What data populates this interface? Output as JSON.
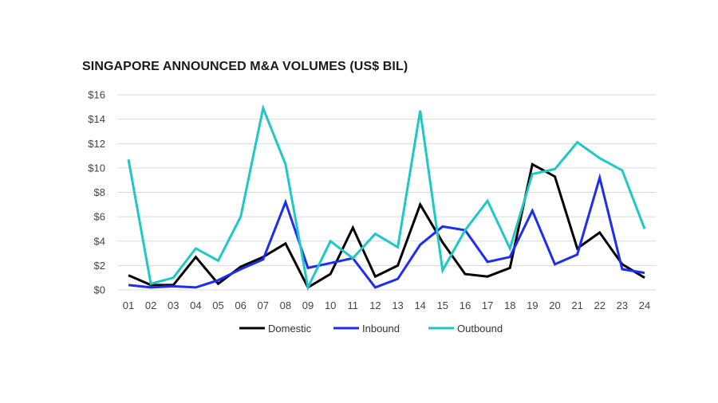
{
  "chart_data": {
    "type": "line",
    "title": "SINGAPORE ANNOUNCED M&A VOLUMES (US$ BIL)",
    "xlabel": "",
    "ylabel": "",
    "ylim": [
      0,
      16
    ],
    "y_ticks": [
      "$0",
      "$2",
      "$4",
      "$6",
      "$8",
      "$10",
      "$12",
      "$14",
      "$16"
    ],
    "y_tick_values": [
      0,
      2,
      4,
      6,
      8,
      10,
      12,
      14,
      16
    ],
    "categories": [
      "01",
      "02",
      "03",
      "04",
      "05",
      "06",
      "07",
      "08",
      "09",
      "10",
      "11",
      "12",
      "13",
      "14",
      "15",
      "16",
      "17",
      "18",
      "19",
      "20",
      "21",
      "22",
      "23",
      "24"
    ],
    "grid": true,
    "legend_position": "bottom",
    "series": [
      {
        "name": "Domestic",
        "color": "#000000",
        "values": [
          1.2,
          0.4,
          0.4,
          2.7,
          0.5,
          1.9,
          2.7,
          3.8,
          0.2,
          1.3,
          5.1,
          1.1,
          2.0,
          7.0,
          3.9,
          1.3,
          1.1,
          1.8,
          10.3,
          9.3,
          3.4,
          4.7,
          2.1,
          1.0
        ]
      },
      {
        "name": "Inbound",
        "color": "#1f2df0",
        "values": [
          0.4,
          0.2,
          0.3,
          0.2,
          0.8,
          1.7,
          2.5,
          7.2,
          1.8,
          2.2,
          2.6,
          0.2,
          0.9,
          3.7,
          5.2,
          4.9,
          2.3,
          2.7,
          6.5,
          2.1,
          2.9,
          9.2,
          1.7,
          1.4
        ]
      },
      {
        "name": "Outbound",
        "color": "#1ec8c8",
        "values": [
          10.7,
          0.5,
          1.0,
          3.4,
          2.4,
          6.0,
          14.9,
          10.3,
          0.2,
          4.0,
          2.6,
          4.6,
          3.5,
          14.7,
          1.6,
          4.9,
          7.3,
          3.4,
          9.5,
          9.9,
          12.1,
          10.8,
          9.8,
          5.0
        ]
      }
    ]
  }
}
